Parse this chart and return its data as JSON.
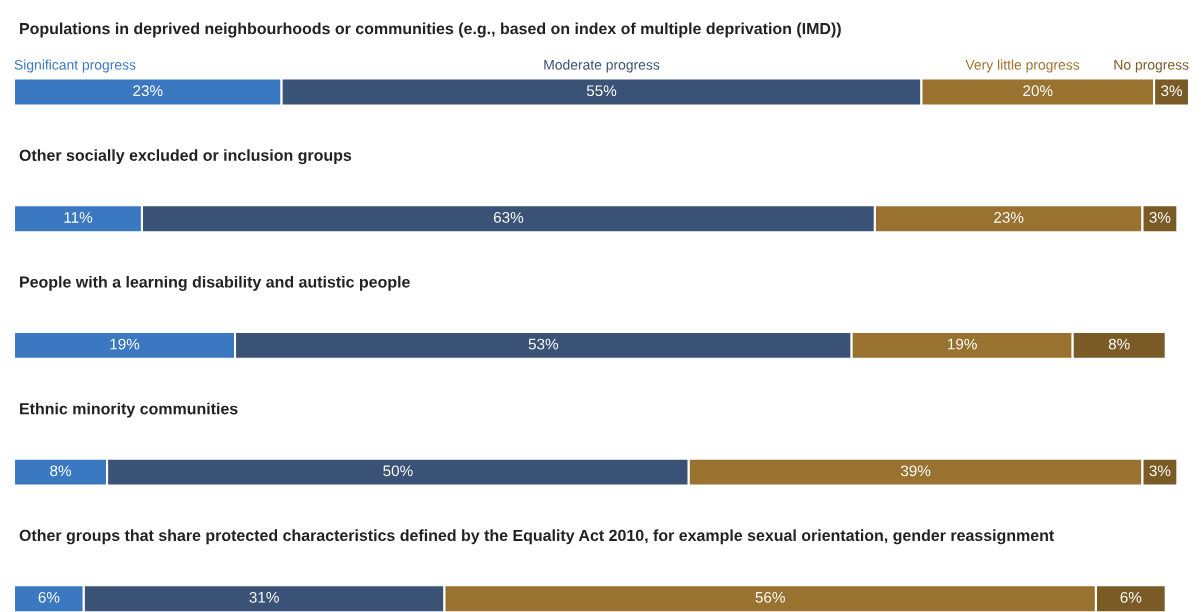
{
  "chart_data": {
    "type": "bar",
    "orientation": "horizontal",
    "stacked": true,
    "categories": [
      "Populations in deprived neighbourhoods or communities (e.g., based on index of multiple deprivation (IMD))",
      "Other socially excluded or inclusion groups",
      "People with a learning disability and autistic people",
      "Ethnic minority communities",
      "Other groups that share protected characteristics defined by the Equality Act 2010, for example sexual orientation, gender reassignment"
    ],
    "series": [
      {
        "name": "Significant progress",
        "color": "#3b78c2",
        "values": [
          23,
          11,
          19,
          8,
          6
        ],
        "value_labels": [
          "23%",
          "11%",
          "19%",
          "8%",
          "6%"
        ]
      },
      {
        "name": "Moderate progress",
        "color": "#3a5275",
        "values": [
          55,
          63,
          53,
          50,
          31
        ],
        "value_labels": [
          "55%",
          "63%",
          "53%",
          "50%",
          "31%"
        ]
      },
      {
        "name": "Very little progress",
        "color": "#9a722f",
        "values": [
          20,
          23,
          19,
          39,
          56
        ],
        "value_labels": [
          "20%",
          "23%",
          "19%",
          "39%",
          "56%"
        ]
      },
      {
        "name": "No progress",
        "color": "#7a5a25",
        "values": [
          3,
          3,
          8,
          3,
          6
        ],
        "value_labels": [
          "3%",
          "3%",
          "8%",
          "3%",
          "6%"
        ]
      }
    ]
  }
}
